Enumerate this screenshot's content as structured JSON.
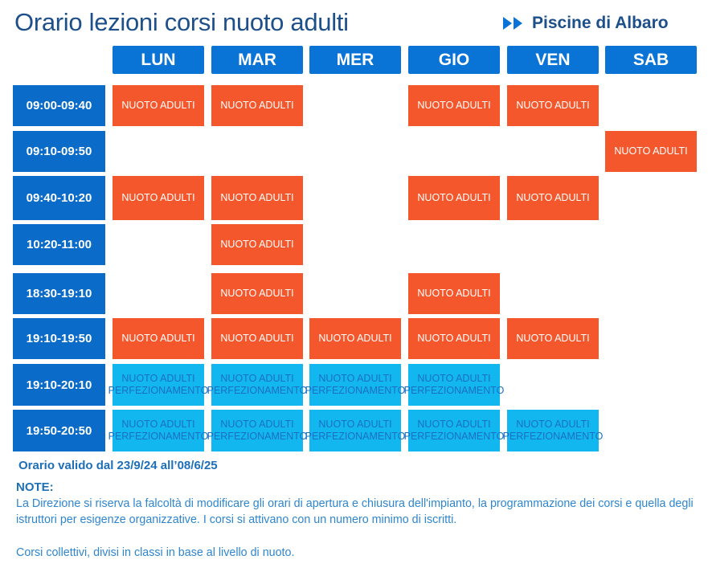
{
  "header": {
    "title": "Orario lezioni corsi nuoto adulti",
    "brand": "Piscine di Albaro"
  },
  "days": [
    "LUN",
    "MAR",
    "MER",
    "GIO",
    "VEN",
    "SAB"
  ],
  "times": [
    "09:00-09:40",
    "09:10-09:50",
    "09:40-10:20",
    "10:20-11:00",
    "18:30-19:10",
    "19:10-19:50",
    "19:10-20:10",
    "19:50-20:50"
  ],
  "labels": {
    "adulti": "NUOTO ADULTI",
    "perf_line1": "NUOTO ADULTI",
    "perf_line2": "PERFEZIONAMENTO"
  },
  "schedule": [
    {
      "row": 0,
      "days": [
        "LUN",
        "MAR",
        "GIO",
        "VEN"
      ],
      "type": "NUOTO ADULTI"
    },
    {
      "row": 1,
      "days": [
        "SAB"
      ],
      "type": "NUOTO ADULTI"
    },
    {
      "row": 2,
      "days": [
        "LUN",
        "MAR",
        "GIO",
        "VEN"
      ],
      "type": "NUOTO ADULTI"
    },
    {
      "row": 3,
      "days": [
        "MAR"
      ],
      "type": "NUOTO ADULTI"
    },
    {
      "row": 4,
      "days": [
        "MAR",
        "GIO"
      ],
      "type": "NUOTO ADULTI"
    },
    {
      "row": 5,
      "days": [
        "LUN",
        "MAR",
        "MER",
        "GIO",
        "VEN"
      ],
      "type": "NUOTO ADULTI"
    },
    {
      "row": 6,
      "days": [
        "LUN",
        "MAR",
        "MER",
        "GIO"
      ],
      "type": "NUOTO ADULTI PERFEZIONAMENTO"
    },
    {
      "row": 7,
      "days": [
        "LUN",
        "MAR",
        "MER",
        "GIO",
        "VEN"
      ],
      "type": "NUOTO ADULTI PERFEZIONAMENTO"
    }
  ],
  "colors": {
    "day_header": "#0a74d6",
    "time_block": "#0a6bc8",
    "adulti": "#f4572b",
    "perfezionamento": "#13b7f0"
  },
  "validity": "Orario valido dal 23/9/24 all’08/6/25",
  "notes": {
    "heading": "NOTE:",
    "p1": "La Direzione si riserva la falcoltà di modificare gli orari di apertura e chiusura dell'impianto, la programmazione dei corsi e quella degli istruttori per esigenze organizzative. I corsi si attivano con un numero minimo di iscritti.",
    "p2": "Corsi collettivi, divisi in classi in base al livello di nuoto."
  }
}
